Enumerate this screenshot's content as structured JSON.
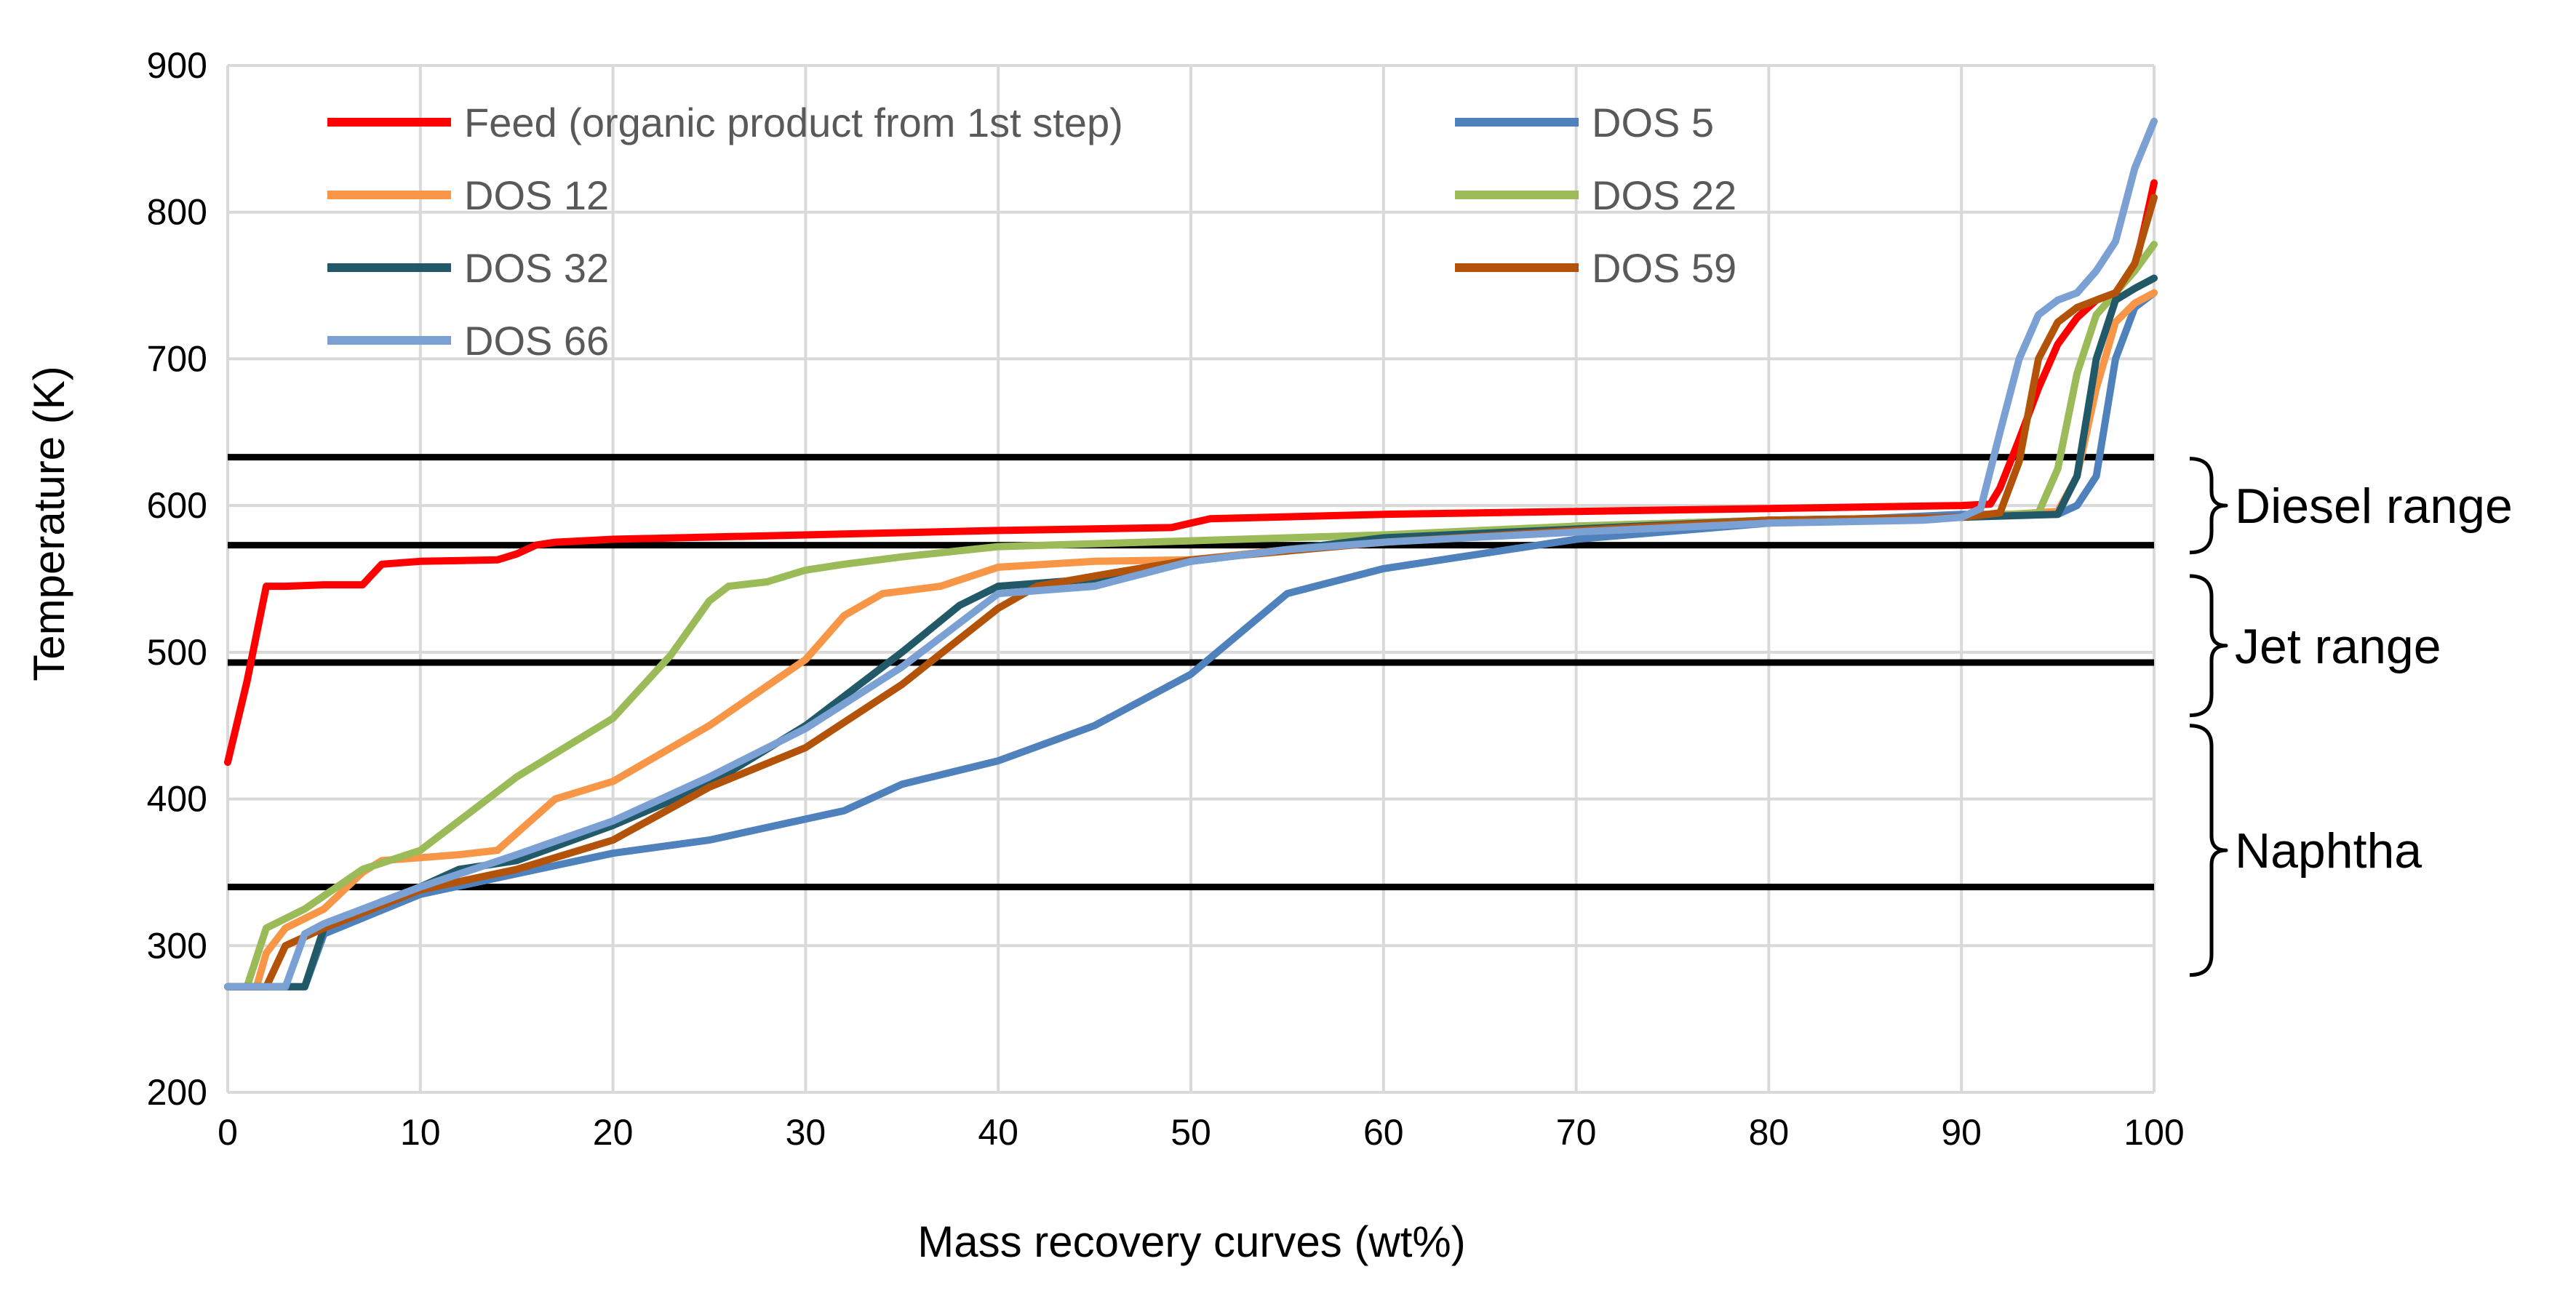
{
  "chart_data": {
    "type": "line",
    "title": "",
    "xlabel": "Mass recovery curves (wt%)",
    "ylabel": "Temperature (K)",
    "xlim": [
      0,
      100
    ],
    "ylim": [
      200,
      900
    ],
    "x_ticks": [
      "0",
      "10",
      "20",
      "30",
      "40",
      "50",
      "60",
      "70",
      "80",
      "90",
      "100"
    ],
    "y_ticks": [
      "200",
      "300",
      "400",
      "500",
      "600",
      "700",
      "800",
      "900"
    ],
    "grid": true,
    "legend_position": "top-left, two columns",
    "reference_lines": [
      {
        "name": "diesel-upper",
        "y": 633
      },
      {
        "name": "diesel-lower",
        "y": 573
      },
      {
        "name": "jet-lower",
        "y": 493
      },
      {
        "name": "naphtha-lower",
        "y": 340
      }
    ],
    "range_annotations": [
      {
        "label": "Diesel range",
        "y_from": 568,
        "y_to": 632
      },
      {
        "label": "Jet range",
        "y_from": 457,
        "y_to": 552
      },
      {
        "label": "Naphtha",
        "y_from": 280,
        "y_to": 450
      }
    ],
    "series": [
      {
        "name": "Feed (organic product from 1st step)",
        "color": "#ff0000",
        "x": [
          0,
          1,
          2,
          3,
          5,
          7,
          8,
          10,
          14,
          15,
          16,
          17,
          20,
          30,
          40,
          49,
          50,
          51,
          60,
          70,
          80,
          90,
          91.5,
          92,
          93,
          94,
          95,
          96,
          97,
          98,
          99,
          99.5,
          100
        ],
        "y": [
          425,
          480,
          545,
          545,
          546,
          546,
          560,
          562,
          563,
          567,
          573,
          575,
          577,
          580,
          583,
          585,
          588,
          591,
          594,
          596,
          598,
          600,
          601,
          612,
          645,
          680,
          710,
          728,
          740,
          745,
          762,
          790,
          820
        ]
      },
      {
        "name": "DOS 5",
        "color": "#4f81bd",
        "x": [
          0,
          3.5,
          4,
          5,
          10,
          20,
          25,
          32,
          35,
          40,
          45,
          50,
          55,
          60,
          70,
          80,
          90,
          95,
          96,
          97,
          98,
          99,
          100
        ],
        "y": [
          272,
          272,
          272,
          308,
          335,
          363,
          372,
          392,
          410,
          426,
          450,
          485,
          540,
          557,
          577,
          588,
          594,
          594,
          600,
          620,
          700,
          735,
          745
        ]
      },
      {
        "name": "DOS 12",
        "color": "#f79646",
        "x": [
          0,
          1.5,
          2,
          3,
          5,
          7,
          8,
          10,
          12,
          14,
          17,
          20,
          25,
          30,
          32,
          34,
          37,
          40,
          45,
          50,
          60,
          70,
          80,
          90,
          95,
          96,
          97,
          98,
          99,
          100
        ],
        "y": [
          272,
          272,
          295,
          312,
          325,
          350,
          358,
          360,
          362,
          365,
          400,
          412,
          450,
          495,
          525,
          540,
          545,
          558,
          562,
          563,
          577,
          586,
          590,
          592,
          596,
          620,
          680,
          725,
          738,
          745
        ]
      },
      {
        "name": "DOS 22",
        "color": "#9bbb59",
        "x": [
          0,
          1,
          2,
          4,
          7,
          10,
          12,
          15,
          20,
          23,
          25,
          26,
          28,
          30,
          32,
          35,
          40,
          50,
          60,
          70,
          80,
          90,
          94,
          95,
          96,
          97,
          98,
          99,
          100
        ],
        "y": [
          272,
          272,
          312,
          325,
          352,
          365,
          385,
          415,
          455,
          498,
          535,
          545,
          548,
          556,
          560,
          565,
          572,
          576,
          580,
          586,
          590,
          592,
          595,
          625,
          690,
          730,
          745,
          760,
          778
        ]
      },
      {
        "name": "DOS 32",
        "color": "#215968",
        "x": [
          0,
          3.5,
          4,
          5,
          8,
          10,
          12,
          15,
          20,
          25,
          30,
          35,
          38,
          40,
          45,
          50,
          60,
          70,
          80,
          90,
          95,
          96,
          97,
          98,
          99,
          100
        ],
        "y": [
          272,
          272,
          272,
          312,
          330,
          340,
          352,
          358,
          382,
          410,
          450,
          500,
          532,
          545,
          550,
          562,
          578,
          584,
          590,
          592,
          594,
          620,
          700,
          740,
          748,
          755
        ]
      },
      {
        "name": "DOS 59",
        "color": "#b35309",
        "x": [
          0,
          2,
          3,
          5,
          10,
          15,
          20,
          25,
          30,
          35,
          40,
          42,
          45,
          50,
          60,
          70,
          80,
          90,
          92,
          93,
          94,
          95,
          96,
          97,
          98,
          99,
          100
        ],
        "y": [
          272,
          272,
          300,
          312,
          338,
          352,
          372,
          408,
          435,
          478,
          530,
          545,
          552,
          563,
          575,
          583,
          590,
          592,
          595,
          630,
          700,
          725,
          735,
          740,
          745,
          765,
          810
        ]
      },
      {
        "name": "DOS 66",
        "color": "#7ba0d4",
        "x": [
          0,
          3,
          4,
          5,
          10,
          15,
          20,
          25,
          30,
          35,
          40,
          45,
          50,
          55,
          60,
          70,
          80,
          88,
          90,
          91,
          92,
          93,
          94,
          95,
          96,
          97,
          98,
          99,
          100
        ],
        "y": [
          272,
          272,
          308,
          315,
          340,
          362,
          385,
          415,
          448,
          490,
          540,
          545,
          562,
          570,
          575,
          582,
          588,
          590,
          592,
          598,
          650,
          700,
          730,
          740,
          745,
          760,
          780,
          830,
          862
        ]
      }
    ]
  }
}
